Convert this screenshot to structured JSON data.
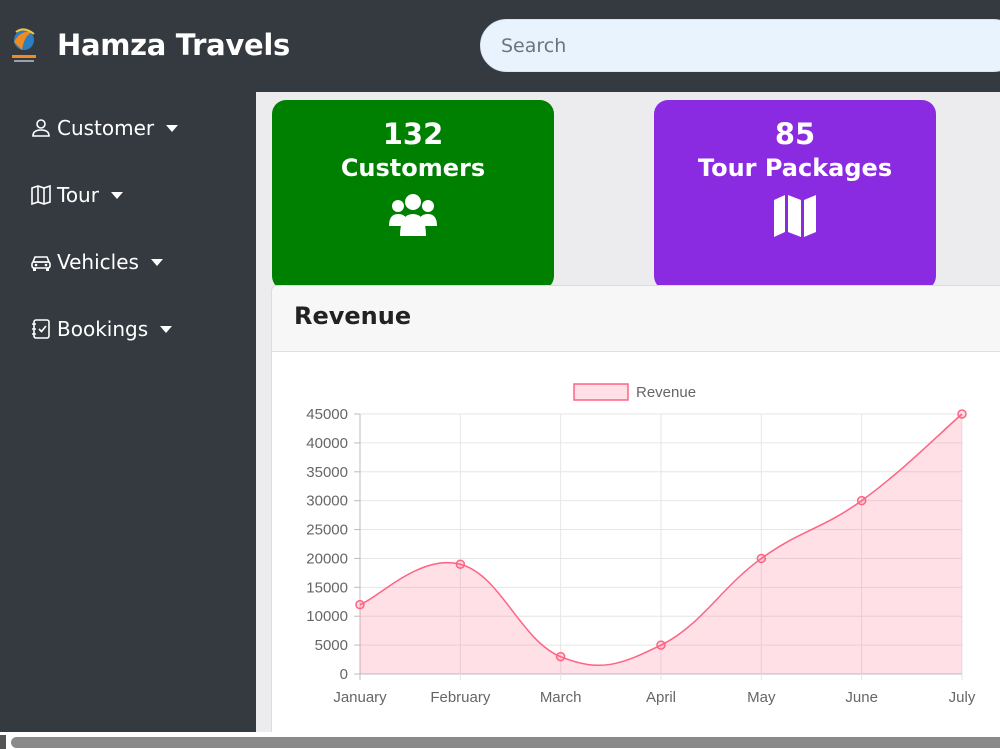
{
  "header": {
    "brand": "Hamza Travels",
    "search_placeholder": "Search"
  },
  "sidebar": {
    "items": [
      {
        "label": "Customer",
        "icon": "person-icon"
      },
      {
        "label": "Tour",
        "icon": "map-icon"
      },
      {
        "label": "Vehicles",
        "icon": "car-icon"
      },
      {
        "label": "Bookings",
        "icon": "journal-check-icon"
      }
    ]
  },
  "cards": [
    {
      "value": "132",
      "label": "Customers",
      "icon": "users-icon",
      "color": "#008000"
    },
    {
      "value": "85",
      "label": "Tour Packages",
      "icon": "map-icon",
      "color": "#8a2be2"
    }
  ],
  "revenue_panel": {
    "title": "Revenue"
  },
  "chart_data": {
    "type": "area",
    "categories": [
      "January",
      "February",
      "March",
      "April",
      "May",
      "June",
      "July"
    ],
    "series": [
      {
        "name": "Revenue",
        "values": [
          12000,
          19000,
          3000,
          5000,
          20000,
          30000,
          45000
        ],
        "color": "#ff6384"
      }
    ],
    "ylim": [
      0,
      45000
    ],
    "yticks": [
      0,
      5000,
      10000,
      15000,
      20000,
      25000,
      30000,
      35000,
      40000,
      45000
    ],
    "grid": true,
    "legend": "top-center"
  }
}
